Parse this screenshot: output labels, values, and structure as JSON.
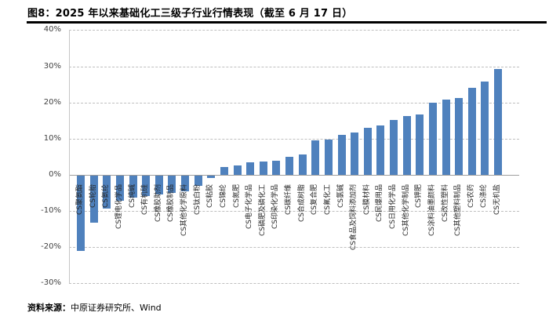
{
  "figure": {
    "title": "图8：2025 年以来基础化工三级子行业行情表现（截至 6 月 17 日）",
    "source_label": "资料来源：",
    "source_text": "中原证券研究所、Wind"
  },
  "chart_data": {
    "type": "bar",
    "title": "2025年以来基础化工三级子行业行情表现（截至6月17日）",
    "categories": [
      "CS聚氨酯",
      "CS轮胎",
      "CS氨纶",
      "CS锂电化学品",
      "CS纯碱",
      "CS有机硅",
      "CS橡胶助剂",
      "CS橡胶制品",
      "CS其他化学原料",
      "CS钛白粉",
      "CS粘胶",
      "CS锦纶",
      "CS氮肥",
      "CS电子化学品",
      "CS磷肥及磷化工",
      "CS印染化学品",
      "CS碳纤维",
      "CS合成树脂",
      "CS复合肥",
      "CS氟化工",
      "CS氯碱",
      "CS食品及饲料添加剂",
      "CS膜材料",
      "CS民爆用品",
      "CS日用化学品",
      "CS其他化学制品",
      "CS钾肥",
      "CS涂料油墨颜料",
      "CS改性塑料",
      "CS其他塑料制品",
      "CS农药",
      "CS涤纶",
      "CS无机盐"
    ],
    "values": [
      -20.7,
      -13.1,
      -9.2,
      -7.0,
      -6.1,
      -5.7,
      -5.2,
      -4.8,
      -4.4,
      -2.8,
      -0.6,
      2.1,
      2.6,
      3.5,
      3.7,
      3.9,
      4.9,
      5.7,
      9.5,
      9.7,
      11.1,
      11.7,
      12.9,
      13.6,
      15.1,
      16.3,
      16.7,
      19.9,
      20.7,
      21.2,
      24.1,
      25.7,
      29.3
    ],
    "xlabel": "",
    "ylabel": "",
    "ylim": [
      -30,
      40
    ],
    "ytick_step": 10,
    "ytick_labels": [
      "40%",
      "30%",
      "20%",
      "10%",
      "0%",
      "-10%",
      "-20%",
      "-30%"
    ],
    "grid": "horizontal-dashed",
    "legend": "none",
    "bar_color": "#4F81BD"
  }
}
